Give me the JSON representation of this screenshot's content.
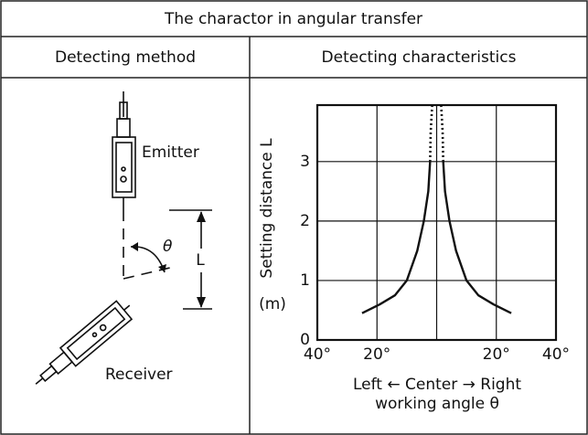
{
  "title": "The charactor in angular transfer",
  "columns": [
    "Detecting method",
    "Detecting characteristics"
  ],
  "diagram": {
    "emitter": "Emitter",
    "receiver": "Receiver",
    "angle": "θ",
    "distance": "L"
  },
  "chart_data": {
    "type": "line",
    "ylabel": "Setting distance L",
    "yunit": "(m)",
    "xlabel_lines": [
      "Left ← Center → Right",
      "working angle θ"
    ],
    "xlim": [
      -40,
      40
    ],
    "ylim": [
      0,
      3.95
    ],
    "xticks": [
      {
        "value": -40,
        "label": "40°"
      },
      {
        "value": -20,
        "label": "20°"
      },
      {
        "value": 0,
        "label": null
      },
      {
        "value": 20,
        "label": "20°"
      },
      {
        "value": 40,
        "label": "40°"
      }
    ],
    "yticks": [
      0,
      1,
      2,
      3
    ],
    "grid": true,
    "series": [
      {
        "color": "#111111",
        "style": "solid",
        "x": [
          2.2,
          2.8,
          4.3,
          6.5,
          10,
          14,
          19,
          25
        ],
        "y": [
          3.0,
          2.5,
          2.0,
          1.5,
          1.0,
          0.75,
          0.6,
          0.45
        ]
      },
      {
        "color": "#111111",
        "style": "dotted",
        "x": [
          1.5,
          2.0,
          2.2
        ],
        "y": [
          3.95,
          3.5,
          3.0
        ]
      },
      {
        "color": "#111111",
        "style": "solid",
        "x": [
          -2.2,
          -2.8,
          -4.3,
          -6.5,
          -10,
          -14,
          -19,
          -25
        ],
        "y": [
          3.0,
          2.5,
          2.0,
          1.5,
          1.0,
          0.75,
          0.6,
          0.45
        ]
      },
      {
        "color": "#111111",
        "style": "dotted",
        "x": [
          -1.5,
          -2.0,
          -2.2
        ],
        "y": [
          3.95,
          3.5,
          3.0
        ]
      }
    ]
  }
}
